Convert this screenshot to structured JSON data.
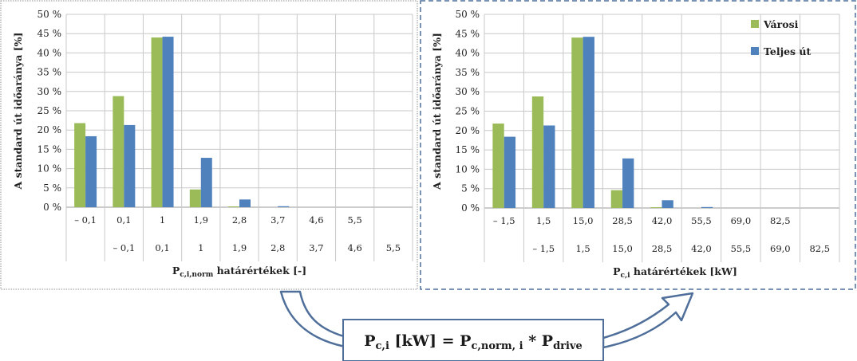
{
  "colors": {
    "series_1": "#9BBB59",
    "series_2": "#4F81BD",
    "grid": "#C8C8C8",
    "axis": "#9A9A9A",
    "frame_dotted": "#8E8E8E",
    "frame_dashed": "#4F6F9A",
    "arrow_fill": "#FFFFFF",
    "arrow_stroke": "#4F6F9A",
    "formula_box_stroke": "#4F6F9A"
  },
  "chart_data": [
    {
      "type": "bar",
      "categories_top": [
        "– 0,1",
        "0,1",
        "1",
        "1,9",
        "2,8",
        "3,7",
        "4,6",
        "5,5",
        ""
      ],
      "categories_bottom": [
        "",
        "– 0,1",
        "0,1",
        "1",
        "1,9",
        "2,8",
        "3,7",
        "4,6",
        "5,5"
      ],
      "series": [
        {
          "values": [
            21.8,
            28.8,
            44.0,
            4.6,
            0.2,
            0.0,
            0.0,
            0.0,
            0.0
          ]
        },
        {
          "values": [
            18.4,
            21.3,
            44.2,
            12.8,
            2.0,
            0.25,
            0.0,
            0.0,
            0.0
          ]
        }
      ],
      "ylim": [
        0,
        50
      ],
      "yticks": [
        0,
        5,
        10,
        15,
        20,
        25,
        30,
        35,
        40,
        45,
        50
      ],
      "ytick_labels": [
        "0 %",
        "5 %",
        "10 %",
        "15 %",
        "20 %",
        "25 %",
        "30 %",
        "35 %",
        "40 %",
        "45 %",
        "50 %"
      ],
      "ylabel": "A standard út időaránya [%]",
      "xlabel_main": "P",
      "xlabel_sub": "c,i,norm",
      "xlabel_rest": " határértékek [-]",
      "grid": true,
      "legend": "none"
    },
    {
      "type": "bar",
      "categories_top": [
        "– 1,5",
        "1,5",
        "15,0",
        "28,5",
        "42,0",
        "55,5",
        "69,0",
        "82,5",
        ""
      ],
      "categories_bottom": [
        "",
        "– 1,5",
        "1,5",
        "15,0",
        "28,5",
        "42,0",
        "55,5",
        "69,0",
        "82,5"
      ],
      "series": [
        {
          "name": "Városi",
          "values": [
            21.8,
            28.8,
            44.0,
            4.6,
            0.2,
            0.0,
            0.0,
            0.0,
            0.0
          ]
        },
        {
          "name": "Teljes út",
          "values": [
            18.4,
            21.3,
            44.2,
            12.8,
            2.0,
            0.25,
            0.0,
            0.0,
            0.0
          ]
        }
      ],
      "ylim": [
        0,
        50
      ],
      "yticks": [
        0,
        5,
        10,
        15,
        20,
        25,
        30,
        35,
        40,
        45,
        50
      ],
      "ytick_labels": [
        "0 %",
        "5 %",
        "10 %",
        "15 %",
        "20 %",
        "25 %",
        "30 %",
        "35 %",
        "40 %",
        "45 %",
        "50 %"
      ],
      "ylabel": "A standard út időaránya [%]",
      "xlabel_main": "P",
      "xlabel_sub": "c,i",
      "xlabel_rest": " határértékek [kW]",
      "grid": true,
      "legend": "top-right"
    }
  ],
  "formula": {
    "lhs_main": "P",
    "lhs_sub": "c,i",
    "lhs_unit": " [kW] = P",
    "rhs_sub": "c,norm, i",
    "mult": " * P",
    "drive_sub": "drive"
  }
}
